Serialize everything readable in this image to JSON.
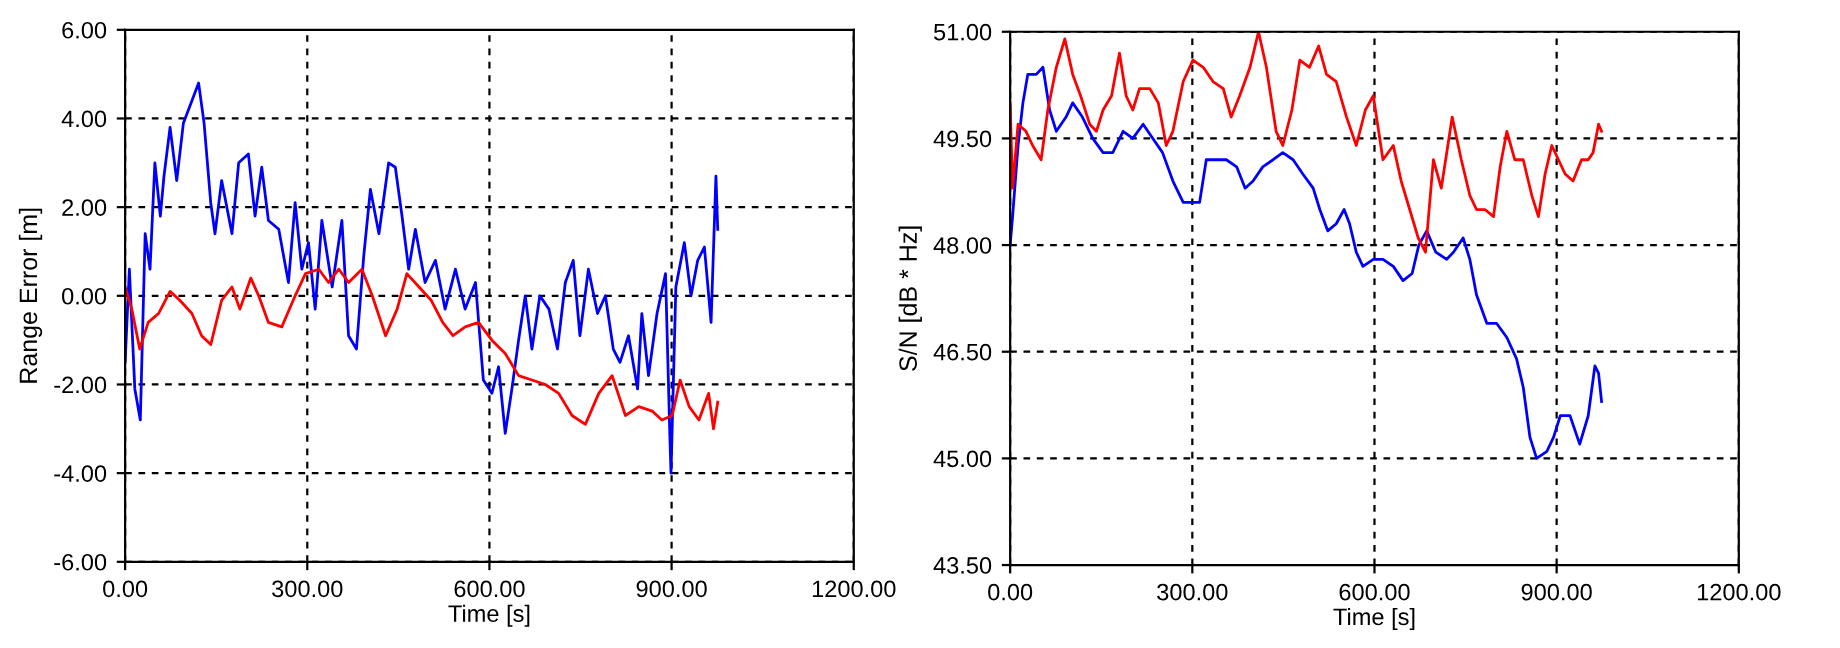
{
  "chart_data": [
    {
      "type": "line",
      "xlabel": "Time [s]",
      "ylabel": "Range Error [m]",
      "grid": true,
      "line_style": "solid",
      "xlim": [
        0,
        1200
      ],
      "xticks": [
        {
          "value": 0,
          "label": "0.00"
        },
        {
          "value": 300,
          "label": "300.00"
        },
        {
          "value": 600,
          "label": "600.00"
        },
        {
          "value": 900,
          "label": "900.00"
        },
        {
          "value": 1200,
          "label": "1200.00"
        }
      ],
      "ylim": [
        -6,
        6
      ],
      "yticks": [
        {
          "value": -6,
          "label": "-6.00"
        },
        {
          "value": -4,
          "label": "-4.00"
        },
        {
          "value": -2,
          "label": "-2.00"
        },
        {
          "value": 0,
          "label": "0.00"
        },
        {
          "value": 2,
          "label": "2.00"
        },
        {
          "value": 4,
          "label": "4.00"
        },
        {
          "value": 6,
          "label": "6.00"
        }
      ],
      "series": [
        {
          "color": "#0000ff",
          "x": [
            0,
            7,
            16,
            25,
            33,
            41,
            49,
            58,
            64,
            74,
            85,
            96,
            110,
            121,
            130,
            141,
            148,
            159,
            176,
            187,
            203,
            214,
            225,
            236,
            253,
            269,
            280,
            291,
            302,
            313,
            324,
            341,
            357,
            368,
            381,
            393,
            404,
            418,
            434,
            445,
            456,
            467,
            478,
            494,
            511,
            527,
            544,
            560,
            577,
            590,
            604,
            615,
            626,
            637,
            648,
            659,
            670,
            683,
            698,
            712,
            725,
            738,
            749,
            763,
            778,
            791,
            804,
            815,
            829,
            844,
            851,
            862,
            876,
            890,
            897,
            899,
            907,
            921,
            932,
            943,
            954,
            965,
            973,
            976
          ],
          "values": [
            -1.5,
            0.6,
            -2.1,
            -2.8,
            1.4,
            0.6,
            3.0,
            1.8,
            2.7,
            3.8,
            2.6,
            3.9,
            4.4,
            4.8,
            3.9,
            2.1,
            1.4,
            2.6,
            1.4,
            3.0,
            3.2,
            1.8,
            2.9,
            1.7,
            1.5,
            0.3,
            2.1,
            0.6,
            1.2,
            -0.3,
            1.7,
            0.2,
            1.7,
            -0.9,
            -1.2,
            0.9,
            2.4,
            1.4,
            3.0,
            2.9,
            1.8,
            0.6,
            1.5,
            0.3,
            0.8,
            -0.3,
            0.6,
            -0.3,
            0.3,
            -1.9,
            -2.2,
            -1.6,
            -3.1,
            -2.1,
            -1.0,
            0.0,
            -1.2,
            0.0,
            -0.3,
            -1.2,
            0.3,
            0.8,
            -0.9,
            0.6,
            -0.4,
            0.0,
            -1.2,
            -1.5,
            -0.9,
            -2.1,
            -0.4,
            -1.8,
            -0.4,
            0.5,
            -3.1,
            -4.0,
            0.2,
            1.2,
            0.0,
            0.8,
            1.1,
            -0.6,
            2.7,
            1.5
          ]
        },
        {
          "color": "#ff0000",
          "x": [
            0,
            11,
            24,
            38,
            55,
            74,
            90,
            110,
            126,
            141,
            159,
            176,
            189,
            207,
            220,
            236,
            258,
            280,
            297,
            319,
            335,
            352,
            368,
            390,
            407,
            429,
            448,
            464,
            484,
            504,
            523,
            540,
            560,
            582,
            604,
            626,
            648,
            670,
            692,
            714,
            736,
            758,
            780,
            802,
            824,
            846,
            868,
            884,
            901,
            914,
            929,
            945,
            961,
            969,
            976
          ],
          "values": [
            0.2,
            -0.3,
            -1.2,
            -0.6,
            -0.4,
            0.1,
            -0.1,
            -0.4,
            -0.9,
            -1.1,
            -0.1,
            0.2,
            -0.3,
            0.4,
            0.0,
            -0.6,
            -0.7,
            0.0,
            0.5,
            0.6,
            0.3,
            0.6,
            0.3,
            0.6,
            0.0,
            -0.9,
            -0.3,
            0.5,
            0.2,
            -0.1,
            -0.6,
            -0.9,
            -0.7,
            -0.6,
            -1.0,
            -1.3,
            -1.8,
            -1.9,
            -2.0,
            -2.2,
            -2.7,
            -2.9,
            -2.2,
            -1.8,
            -2.7,
            -2.5,
            -2.6,
            -2.8,
            -2.7,
            -1.9,
            -2.5,
            -2.8,
            -2.2,
            -3.0,
            -2.4
          ]
        }
      ]
    },
    {
      "type": "line",
      "xlabel": "Time [s]",
      "ylabel": "S/N [dB * Hz]",
      "grid": true,
      "line_style": "solid",
      "xlim": [
        0,
        1200
      ],
      "xticks": [
        {
          "value": 0,
          "label": "0.00"
        },
        {
          "value": 300,
          "label": "300.00"
        },
        {
          "value": 600,
          "label": "600.00"
        },
        {
          "value": 900,
          "label": "900.00"
        },
        {
          "value": 1200,
          "label": "1200.00"
        }
      ],
      "ylim": [
        43.5,
        51
      ],
      "yticks": [
        {
          "value": 43.5,
          "label": "43.50"
        },
        {
          "value": 45,
          "label": "45.00"
        },
        {
          "value": 46.5,
          "label": "46.50"
        },
        {
          "value": 48,
          "label": "48.00"
        },
        {
          "value": 49.5,
          "label": "49.50"
        },
        {
          "value": 51,
          "label": "51.00"
        }
      ],
      "series": [
        {
          "color": "#0000ff",
          "x": [
            0,
            4,
            13,
            21,
            29,
            43,
            54,
            65,
            76,
            92,
            103,
            119,
            136,
            153,
            169,
            186,
            202,
            219,
            235,
            251,
            268,
            285,
            301,
            312,
            323,
            340,
            356,
            373,
            387,
            400,
            416,
            433,
            449,
            466,
            482,
            499,
            510,
            523,
            537,
            550,
            559,
            570,
            581,
            598,
            614,
            631,
            647,
            662,
            673,
            686,
            701,
            719,
            730,
            746,
            757,
            768,
            785,
            801,
            818,
            834,
            845,
            856,
            867,
            884,
            895,
            906,
            922,
            938,
            952,
            963,
            969,
            974
          ],
          "values": [
            48.0,
            48.4,
            49.4,
            50.0,
            50.4,
            50.4,
            50.5,
            49.9,
            49.6,
            49.8,
            50.0,
            49.8,
            49.5,
            49.3,
            49.3,
            49.6,
            49.5,
            49.7,
            49.5,
            49.3,
            48.9,
            48.6,
            48.6,
            48.6,
            49.2,
            49.2,
            49.2,
            49.1,
            48.8,
            48.9,
            49.1,
            49.2,
            49.3,
            49.2,
            49.0,
            48.8,
            48.5,
            48.2,
            48.3,
            48.5,
            48.3,
            47.9,
            47.7,
            47.8,
            47.8,
            47.7,
            47.5,
            47.6,
            48.0,
            48.2,
            47.9,
            47.8,
            47.9,
            48.1,
            47.8,
            47.3,
            46.9,
            46.9,
            46.7,
            46.4,
            46.0,
            45.3,
            45.0,
            45.1,
            45.3,
            45.6,
            45.6,
            45.2,
            45.6,
            46.3,
            46.2,
            45.8
          ]
        },
        {
          "color": "#ff0000",
          "x": [
            0,
            4,
            13,
            26,
            37,
            51,
            62,
            76,
            90,
            103,
            116,
            131,
            142,
            153,
            167,
            180,
            191,
            202,
            213,
            230,
            244,
            257,
            268,
            285,
            301,
            318,
            334,
            351,
            364,
            378,
            395,
            409,
            422,
            438,
            449,
            464,
            477,
            493,
            508,
            521,
            537,
            554,
            570,
            585,
            598,
            614,
            631,
            644,
            658,
            672,
            684,
            697,
            710,
            728,
            743,
            757,
            768,
            782,
            796,
            807,
            818,
            831,
            845,
            859,
            870,
            881,
            892,
            903,
            914,
            927,
            941,
            952,
            960,
            969,
            974
          ],
          "values": [
            50.0,
            48.8,
            49.7,
            49.6,
            49.4,
            49.2,
            49.9,
            50.5,
            50.9,
            50.4,
            50.1,
            49.7,
            49.6,
            49.9,
            50.1,
            50.7,
            50.1,
            49.9,
            50.2,
            50.2,
            50.0,
            49.4,
            49.6,
            50.3,
            50.6,
            50.5,
            50.3,
            50.2,
            49.8,
            50.1,
            50.5,
            51.0,
            50.5,
            49.6,
            49.4,
            49.9,
            50.6,
            50.5,
            50.8,
            50.4,
            50.3,
            49.8,
            49.4,
            49.9,
            50.1,
            49.2,
            49.4,
            48.9,
            48.5,
            48.1,
            47.9,
            49.2,
            48.8,
            49.8,
            49.2,
            48.7,
            48.5,
            48.5,
            48.4,
            49.1,
            49.6,
            49.2,
            49.2,
            48.7,
            48.4,
            49.0,
            49.4,
            49.2,
            49.0,
            48.9,
            49.2,
            49.2,
            49.3,
            49.7,
            49.6
          ]
        }
      ]
    }
  ]
}
